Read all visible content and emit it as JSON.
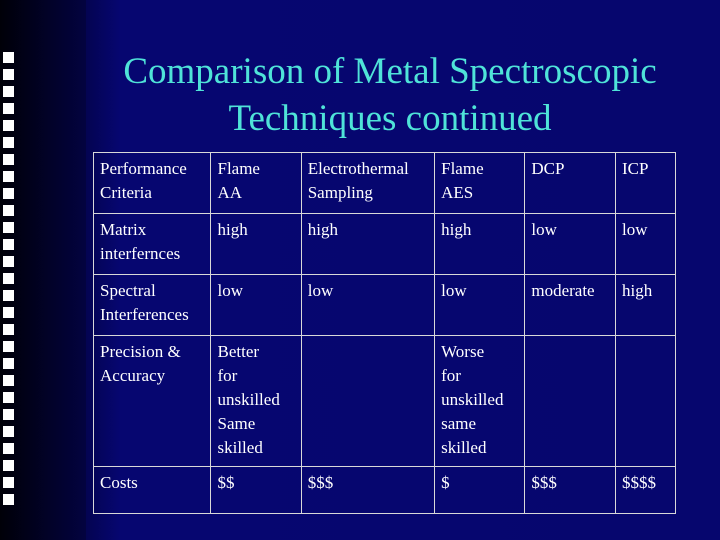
{
  "slide": {
    "title_line1": "Comparison of Metal Spectroscopic",
    "title_line2": "Techniques continued"
  },
  "table": {
    "header": [
      "Performance\nCriteria",
      "Flame\nAA",
      "Electrothermal\nSampling",
      "Flame\nAES",
      "DCP",
      "ICP"
    ],
    "rows": [
      [
        "Matrix\ninterfernces",
        "high",
        "high",
        "high",
        "low",
        "low"
      ],
      [
        "Spectral\nInterferences",
        "low",
        "low",
        "low",
        "moderate",
        "high"
      ],
      [
        "Precision &\nAccuracy",
        "Better\nfor\nunskilled\nSame\nskilled",
        "",
        "Worse\nfor\nunskilled\nsame\nskilled",
        "",
        ""
      ],
      [
        "Costs",
        "$$",
        "$$$",
        "$",
        "$$$",
        "$$$$"
      ]
    ]
  },
  "colors": {
    "background": "#06066e",
    "title": "#4fe3d8",
    "text": "#ffffff",
    "square_bullets": "#ffffff"
  }
}
